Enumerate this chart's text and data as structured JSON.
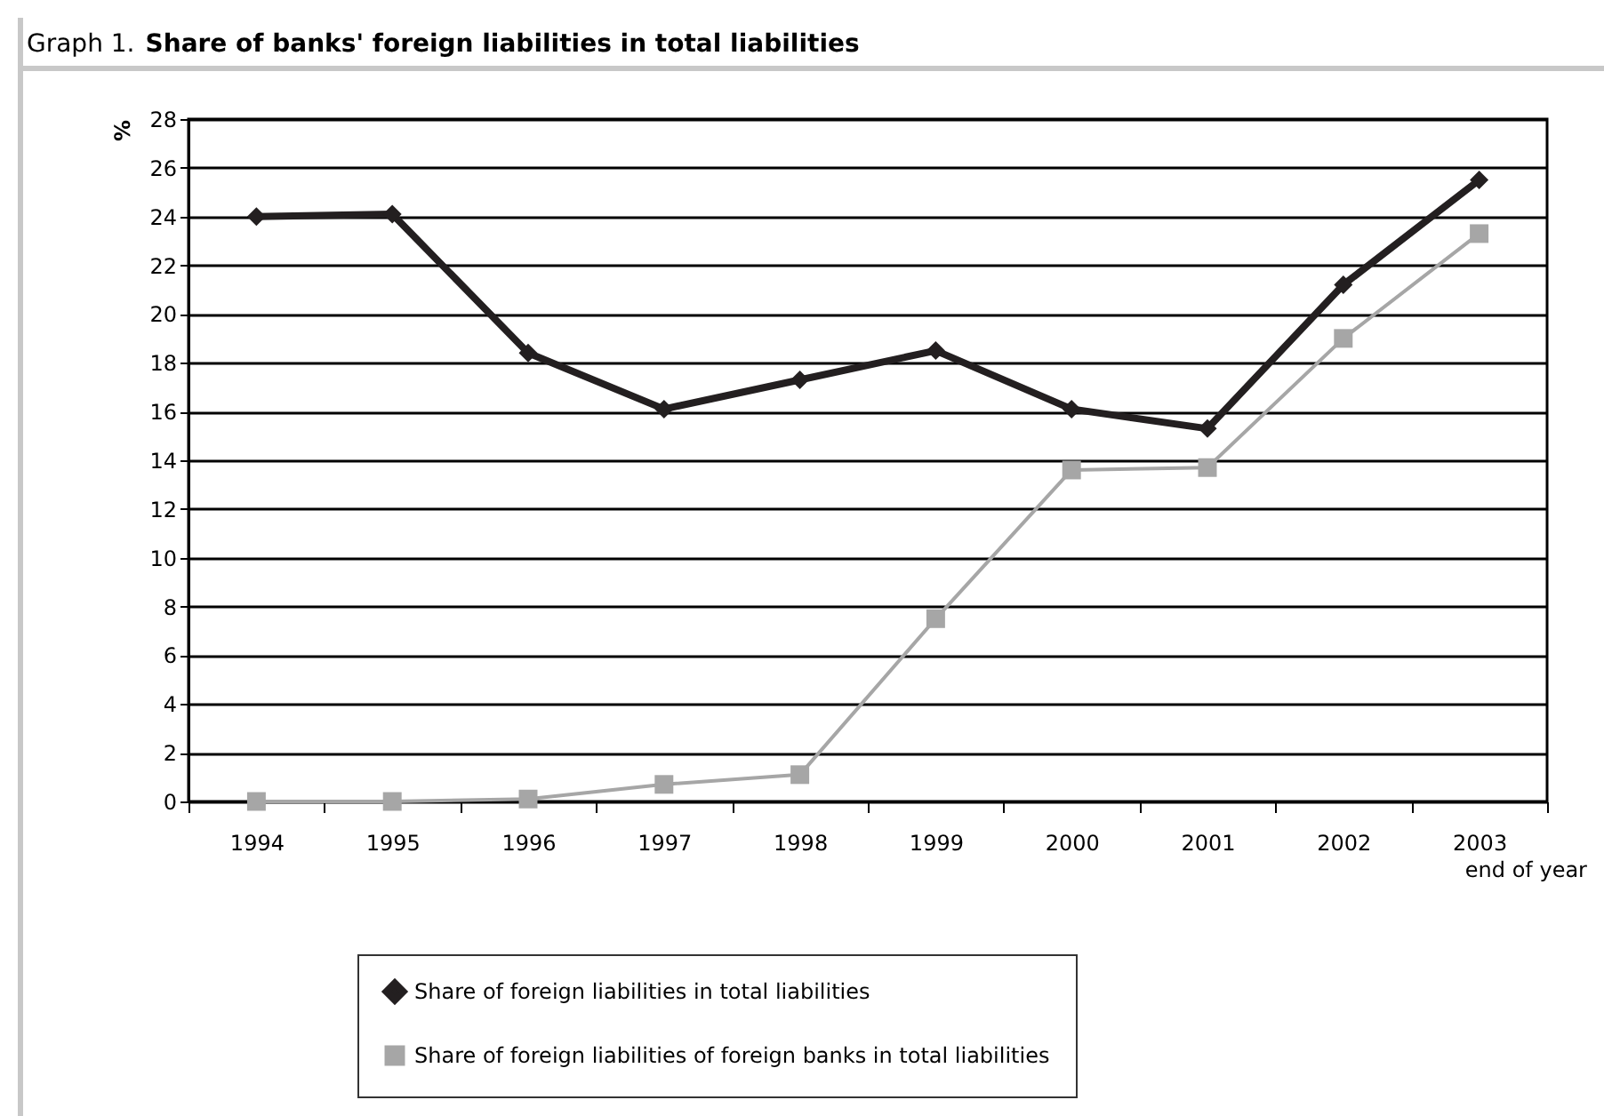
{
  "chart_data": {
    "type": "line",
    "title": "Share of banks' foreign liabilities in total liabilities",
    "annotations": [
      "Graph 1."
    ],
    "ylabel": "%",
    "xlabel": "end of year",
    "categories": [
      "1994",
      "1995",
      "1996",
      "1997",
      "1998",
      "1999",
      "2000",
      "2001",
      "2002",
      "2003"
    ],
    "series": [
      {
        "name": "Share of foreign liabilities in total liabilities",
        "color": "#231f20",
        "marker": "diamond",
        "values": [
          24.0,
          24.1,
          18.4,
          16.1,
          17.3,
          18.5,
          16.1,
          15.3,
          21.2,
          25.5
        ]
      },
      {
        "name": "Share of foreign liabilities of foreign banks in total liabilities",
        "color": "#a6a6a6",
        "marker": "square",
        "values": [
          0,
          0,
          0.1,
          0.7,
          1.1,
          7.5,
          13.6,
          13.7,
          19.0,
          23.3
        ]
      }
    ],
    "ylim": [
      0,
      28
    ],
    "yticks": [
      0,
      2,
      4,
      6,
      8,
      10,
      12,
      14,
      16,
      18,
      20,
      22,
      24,
      26,
      28
    ],
    "grid": "y",
    "legend": "bottom"
  }
}
